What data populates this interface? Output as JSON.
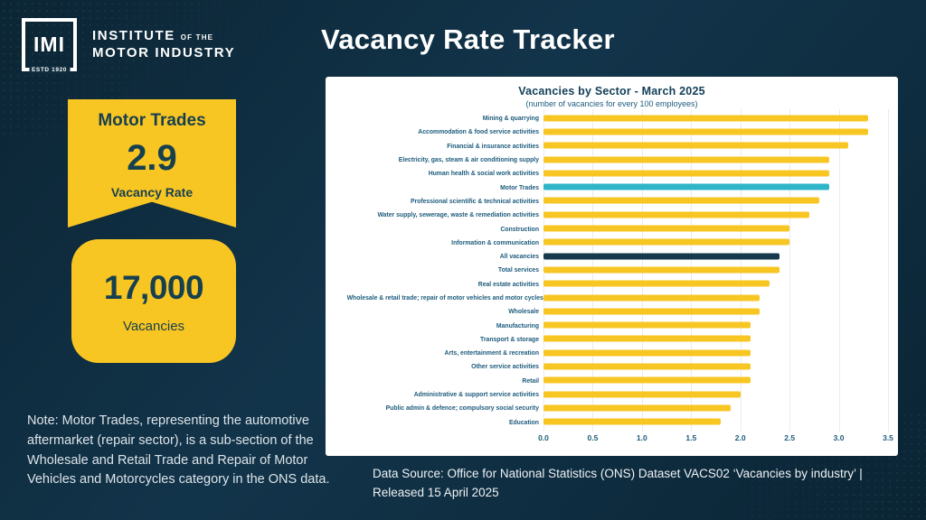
{
  "brand": {
    "logo_acronym": "IMI",
    "logo_established": "ESTD 1920",
    "name_line1": "INSTITUTE",
    "name_line1_small": "OF THE",
    "name_line2": "MOTOR INDUSTRY"
  },
  "header": {
    "title": "Vacancy Rate Tracker"
  },
  "highlight_cards": {
    "rate_card": {
      "title": "Motor Trades",
      "value": "2.9",
      "label": "Vacancy Rate"
    },
    "vacancies_card": {
      "value": "17,000",
      "label": "Vacancies"
    }
  },
  "note": "Note: Motor Trades, representing the automotive aftermarket (repair sector), is a sub-section of the Wholesale and Retail Trade and Repair of Motor Vehicles and Motorcycles category in the ONS data.",
  "source": "Data Source: Office for National Statistics (ONS) Dataset VACS02 ‘Vacancies by industry’ | Released 15 April 2025",
  "colors": {
    "background_navy": "#0E2B3C",
    "brand_yellow": "#F8C623",
    "teal_highlight": "#2EB5C8",
    "navy_bar": "#16394B",
    "chart_text": "#1C5B7C"
  },
  "chart_data": {
    "type": "bar",
    "orientation": "horizontal",
    "title": "Vacancies by Sector  - March 2025",
    "subtitle": "(number of vacancies for every 100 employees)",
    "categories": [
      "Mining & quarrying",
      "Accommodation & food service activities",
      "Financial & insurance activities",
      "Electricity, gas, steam & air conditioning supply",
      "Human health & social work activities",
      "Motor Trades",
      "Professional scientific & technical activities",
      "Water supply, sewerage, waste & remediation activities",
      "Construction",
      "Information & communication",
      "All vacancies",
      "Total services",
      "Real estate activities",
      "Wholesale & retail trade; repair of motor vehicles and motor cycles",
      "Wholesale",
      "Manufacturing",
      "Transport & storage",
      "Arts, entertainment & recreation",
      "Other service activities",
      "Retail",
      "Administrative & support service activities",
      "Public admin & defence; compulsory social security",
      "Education"
    ],
    "values": [
      3.3,
      3.3,
      3.1,
      2.9,
      2.9,
      2.9,
      2.8,
      2.7,
      2.5,
      2.5,
      2.4,
      2.4,
      2.3,
      2.2,
      2.2,
      2.1,
      2.1,
      2.1,
      2.1,
      2.1,
      2.0,
      1.9,
      1.8
    ],
    "xlim": [
      0,
      3.5
    ],
    "ticks": [
      "0.0",
      "0.5",
      "1.0",
      "1.5",
      "2.0",
      "2.5",
      "3.0",
      "3.5"
    ],
    "grid": true,
    "legend": false,
    "bar_colors": {
      "default": "#F8C623",
      "Motor Trades": "#2EB5C8",
      "All vacancies": "#16394B"
    }
  }
}
